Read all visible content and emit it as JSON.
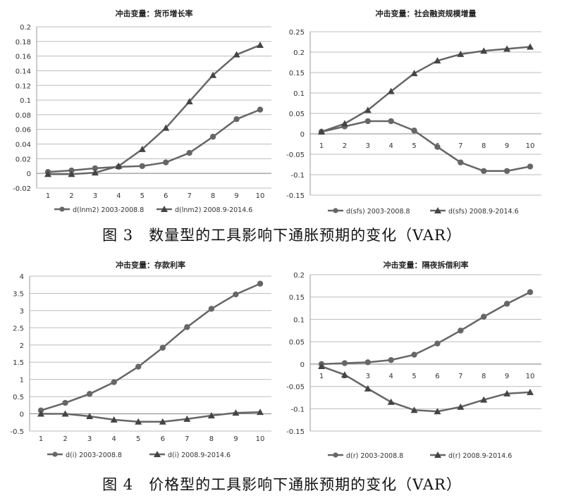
{
  "figures": [
    {
      "caption": "图 3　数量型的工具影响下通胀预期的变化（VAR）"
    },
    {
      "caption": "图 4　价格型的工具影响下通胀预期的变化（VAR）"
    }
  ],
  "chart_data": [
    {
      "type": "line",
      "title": "冲击变量：货币增长率",
      "x": [
        1,
        2,
        3,
        4,
        5,
        6,
        7,
        8,
        9,
        10
      ],
      "ylim": [
        -0.02,
        0.2
      ],
      "yticks": [
        -0.02,
        0,
        0.02,
        0.04,
        0.06,
        0.08,
        0.1,
        0.12,
        0.14,
        0.16,
        0.18,
        0.2
      ],
      "ytick_labels": [
        "-0.02",
        "0",
        "0.02",
        "0.04",
        "0.06",
        "0.08",
        "0.1",
        "0.12",
        "0.14",
        "0.16",
        "0.18",
        "0.2"
      ],
      "grid": true,
      "legend_position": "bottom",
      "series": [
        {
          "name": "d(lnm2) 2003-2008.8",
          "marker": "circle",
          "color": "#666666",
          "values": [
            0.002,
            0.004,
            0.007,
            0.009,
            0.01,
            0.015,
            0.028,
            0.05,
            0.074,
            0.087
          ]
        },
        {
          "name": "d(lnm2) 2008.9-2014.6",
          "marker": "triangle",
          "color": "#666666",
          "values": [
            -0.001,
            -0.001,
            0.001,
            0.01,
            0.033,
            0.062,
            0.098,
            0.134,
            0.162,
            0.175
          ]
        }
      ]
    },
    {
      "type": "line",
      "title": "冲击变量：社会融资规模增量",
      "x": [
        1,
        2,
        3,
        4,
        5,
        6,
        7,
        8,
        9,
        10
      ],
      "ylim": [
        -0.15,
        0.25
      ],
      "yticks": [
        -0.15,
        -0.1,
        -0.05,
        0,
        0.05,
        0.1,
        0.15,
        0.2,
        0.25
      ],
      "ytick_labels": [
        "-0.15",
        "-0.1",
        "-0.05",
        "0",
        "0.05",
        "0.1",
        "0.15",
        "0.2",
        "0.25"
      ],
      "grid": true,
      "legend_position": "bottom",
      "series": [
        {
          "name": "d(sfs) 2003-2008.8",
          "marker": "circle",
          "color": "#666666",
          "values": [
            0.005,
            0.018,
            0.031,
            0.031,
            0.008,
            -0.032,
            -0.07,
            -0.091,
            -0.091,
            -0.08
          ]
        },
        {
          "name": "d(sfs) 2008.9-2014.6",
          "marker": "triangle",
          "color": "#666666",
          "values": [
            0.005,
            0.025,
            0.058,
            0.104,
            0.148,
            0.179,
            0.195,
            0.203,
            0.208,
            0.213
          ]
        }
      ]
    },
    {
      "type": "line",
      "title": "冲击变量：存款利率",
      "x": [
        1,
        2,
        3,
        4,
        5,
        6,
        7,
        8,
        9,
        10
      ],
      "ylim": [
        -0.5,
        4
      ],
      "yticks": [
        -0.5,
        0,
        0.5,
        1,
        1.5,
        2,
        2.5,
        3,
        3.5,
        4
      ],
      "ytick_labels": [
        "-0.5",
        "0",
        "0.5",
        "1",
        "1.5",
        "2",
        "2.5",
        "3",
        "3.5",
        "4"
      ],
      "grid": true,
      "legend_position": "bottom",
      "series": [
        {
          "name": "d(i) 2003-2008.8",
          "marker": "circle",
          "color": "#666666",
          "values": [
            0.1,
            0.32,
            0.58,
            0.92,
            1.37,
            1.92,
            2.52,
            3.05,
            3.47,
            3.78
          ]
        },
        {
          "name": "d(i) 2008.9-2014.6",
          "marker": "triangle",
          "color": "#666666",
          "values": [
            0.0,
            0.0,
            -0.07,
            -0.17,
            -0.23,
            -0.23,
            -0.15,
            -0.05,
            0.03,
            0.05
          ]
        }
      ]
    },
    {
      "type": "line",
      "title": "冲击变量：隔夜拆借利率",
      "x": [
        1,
        2,
        3,
        4,
        5,
        6,
        7,
        8,
        9,
        10
      ],
      "ylim": [
        -0.15,
        0.2
      ],
      "yticks": [
        -0.15,
        -0.1,
        -0.05,
        0,
        0.05,
        0.1,
        0.15,
        0.2
      ],
      "ytick_labels": [
        "-0.15",
        "-0.1",
        "-0.05",
        "0",
        "0.05",
        "0.1",
        "0.15",
        "0.2"
      ],
      "grid": true,
      "legend_position": "bottom",
      "series": [
        {
          "name": "d(r) 2003-2008.8",
          "marker": "circle",
          "color": "#666666",
          "values": [
            0.0,
            0.002,
            0.004,
            0.009,
            0.021,
            0.046,
            0.075,
            0.106,
            0.135,
            0.161
          ]
        },
        {
          "name": "d(r) 2008.9-2014.6",
          "marker": "triangle",
          "color": "#666666",
          "values": [
            -0.005,
            -0.024,
            -0.055,
            -0.085,
            -0.103,
            -0.106,
            -0.096,
            -0.08,
            -0.066,
            -0.063
          ]
        }
      ]
    }
  ]
}
